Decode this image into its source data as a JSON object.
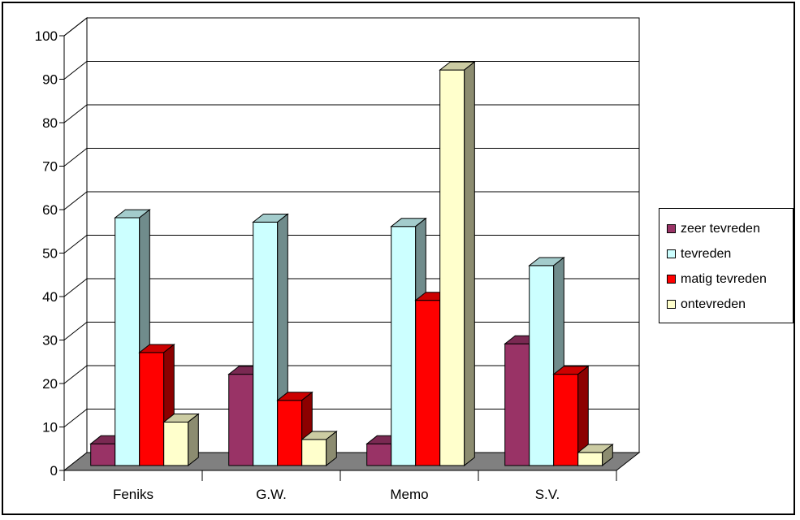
{
  "chart_data": {
    "type": "bar",
    "categories": [
      "Feniks",
      "G.W.",
      "Memo",
      "S.V."
    ],
    "series": [
      {
        "name": "zeer tevreden",
        "values": [
          5,
          21,
          5,
          28
        ]
      },
      {
        "name": "tevreden",
        "values": [
          57,
          56,
          55,
          46
        ]
      },
      {
        "name": "matig tevreden",
        "values": [
          26,
          15,
          38,
          21
        ]
      },
      {
        "name": "ontevreden",
        "values": [
          10,
          6,
          91,
          3
        ]
      }
    ],
    "colors": [
      "#993366",
      "#ccffff",
      "#ff0000",
      "#ffffcc"
    ],
    "title": "",
    "xlabel": "",
    "ylabel": "",
    "ylim": [
      0,
      100
    ],
    "yticks": [
      "0",
      "10",
      "20",
      "30",
      "40",
      "50",
      "60",
      "70",
      "80",
      "90",
      "100"
    ],
    "grid": true,
    "three_d": true,
    "legend_position": "right"
  }
}
